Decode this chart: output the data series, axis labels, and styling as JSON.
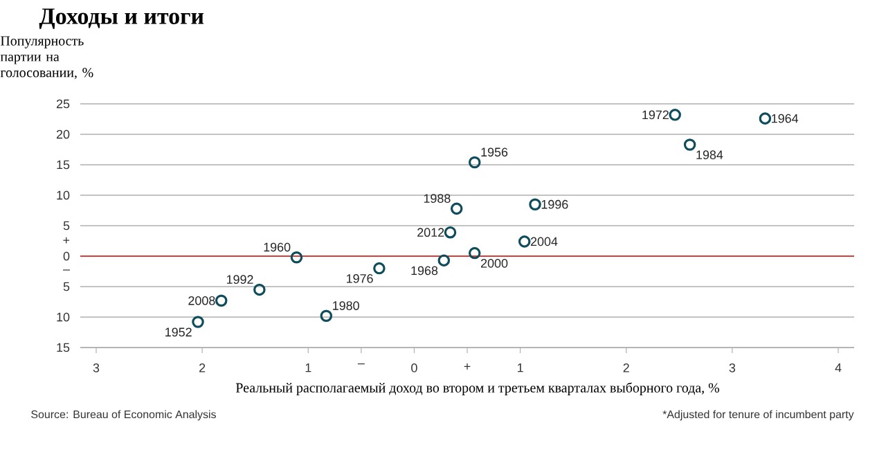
{
  "chart_data": {
    "type": "scatter",
    "title": "Доходы и итоги",
    "xlabel": "Реальный располагаемый доход во втором и третьем кварталах выборного года, %",
    "ylabel": "Популярность партии на голосовании, %",
    "series": [
      {
        "color": "#0f4c5c",
        "x": [
          -2.04,
          -1.82,
          -1.46,
          -1.11,
          -0.83,
          -0.33,
          0.28,
          0.34,
          0.4,
          0.57,
          0.57,
          1.04,
          1.14,
          2.46,
          2.6,
          3.31
        ],
        "values": [
          -10.8,
          -7.3,
          -5.5,
          -0.2,
          -9.8,
          -2.0,
          -0.7,
          3.9,
          7.8,
          15.4,
          0.5,
          2.4,
          8.5,
          23.2,
          18.3,
          22.6
        ]
      }
    ],
    "marker": "circle",
    "xlim": [
      -3.15,
      4.15
    ],
    "xticks": [
      {
        "value": -3,
        "label": "3"
      },
      {
        "value": -2,
        "label": "2"
      },
      {
        "value": -1,
        "label": "1"
      },
      {
        "value": -0.5,
        "label": "–"
      },
      0,
      {
        "value": 0.5,
        "label": "+"
      },
      1,
      2,
      3,
      4
    ],
    "ylim": [
      -15,
      25
    ],
    "yticks": [
      25,
      20,
      15,
      10,
      5,
      {
        "value": 2.5,
        "label": "+"
      },
      0,
      {
        "value": -2.5,
        "label": "–"
      },
      {
        "value": -5,
        "label": "5"
      },
      {
        "value": -10,
        "label": "10"
      },
      {
        "value": -15,
        "label": "15"
      }
    ],
    "grid": "y",
    "ref_lines": [
      {
        "axis": "y",
        "value": 0,
        "color": "#e3120b"
      }
    ],
    "annotations": [
      {
        "text": "1952",
        "x": -2.04,
        "y": -10.8
      },
      {
        "text": "2008",
        "x": -1.82,
        "y": -7.3
      },
      {
        "text": "1992",
        "x": -1.46,
        "y": -5.5
      },
      {
        "text": "1960",
        "x": -1.11,
        "y": -0.2
      },
      {
        "text": "1980",
        "x": -0.83,
        "y": -9.8
      },
      {
        "text": "1976",
        "x": -0.33,
        "y": -2.0
      },
      {
        "text": "1968",
        "x": 0.28,
        "y": -0.7
      },
      {
        "text": "2012",
        "x": 0.34,
        "y": 3.9
      },
      {
        "text": "1988",
        "x": 0.4,
        "y": 7.8
      },
      {
        "text": "1956",
        "x": 0.57,
        "y": 15.4
      },
      {
        "text": "2000",
        "x": 0.57,
        "y": 0.5
      },
      {
        "text": "2004",
        "x": 1.04,
        "y": 2.4
      },
      {
        "text": "1996",
        "x": 1.14,
        "y": 8.5
      },
      {
        "text": "1972",
        "x": 2.46,
        "y": 23.2
      },
      {
        "text": "1984",
        "x": 2.6,
        "y": 18.3
      },
      {
        "text": "1964",
        "x": 3.31,
        "y": 22.6
      },
      "Source: Bureau of Economic Analysis",
      "*Adjusted for tenure of incumbent party"
    ]
  }
}
